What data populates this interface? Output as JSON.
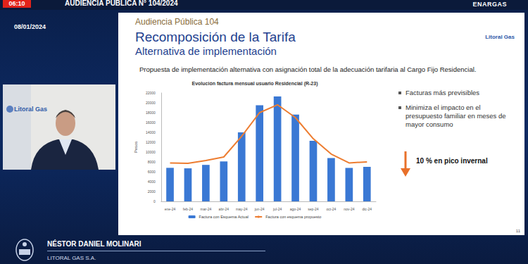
{
  "header": {
    "clock": "06:10",
    "title": "AUDIENCIA PÚBLICA N° 104/2024",
    "brand": "ENARGAS",
    "date": "08/01/2024"
  },
  "presenter": {
    "backdrop": "Litoral Gas",
    "name": "NÉSTOR DANIEL MOLINARI",
    "company": "LITORAL GAS S.A."
  },
  "slide": {
    "subtitle": "Audiencia Pública 104",
    "title": "Recomposición de la Tarifa",
    "title2": "Alternativa de implementación",
    "logo": "Litoral Gas",
    "proposal": "Propuesta de implementación alternativa con asignación total de la adecuación tarifaria al Cargo Fijo Residencial.",
    "bullets": [
      "Facturas más previsibles",
      "Minimiza el impacto en el presupuesto familiar en meses de mayor consumo"
    ],
    "highlight": "10 % en pico invernal",
    "page": "11"
  },
  "chart_data": {
    "type": "bar",
    "title": "Evolución factura mensual usuario Residencial (R-23)",
    "y_label": "Pesos",
    "categories": [
      "ene-24",
      "feb-24",
      "mar-24",
      "abr-24",
      "may-24",
      "jun-24",
      "jul-24",
      "ago-24",
      "sep-24",
      "oct-24",
      "nov-24",
      "dic-24"
    ],
    "series": [
      {
        "name": "Factura con Esquema Actual",
        "type": "bar",
        "color": "#3a78d4",
        "values": [
          6800,
          6700,
          7400,
          8100,
          14000,
          19500,
          21300,
          17600,
          12300,
          8800,
          6800,
          7000
        ]
      },
      {
        "name": "Factura con esquema propuesto",
        "type": "line",
        "color": "#ed7d31",
        "marker": "none",
        "values": [
          7800,
          7700,
          8300,
          9000,
          13200,
          18000,
          19600,
          17000,
          12700,
          9600,
          7800,
          8000
        ]
      }
    ],
    "ylim": [
      0,
      22000
    ],
    "yticks": [
      0,
      2000,
      4000,
      6000,
      8000,
      10000,
      12000,
      14000,
      16000,
      18000,
      20000,
      22000
    ],
    "grid": false,
    "legend": "bottom"
  }
}
